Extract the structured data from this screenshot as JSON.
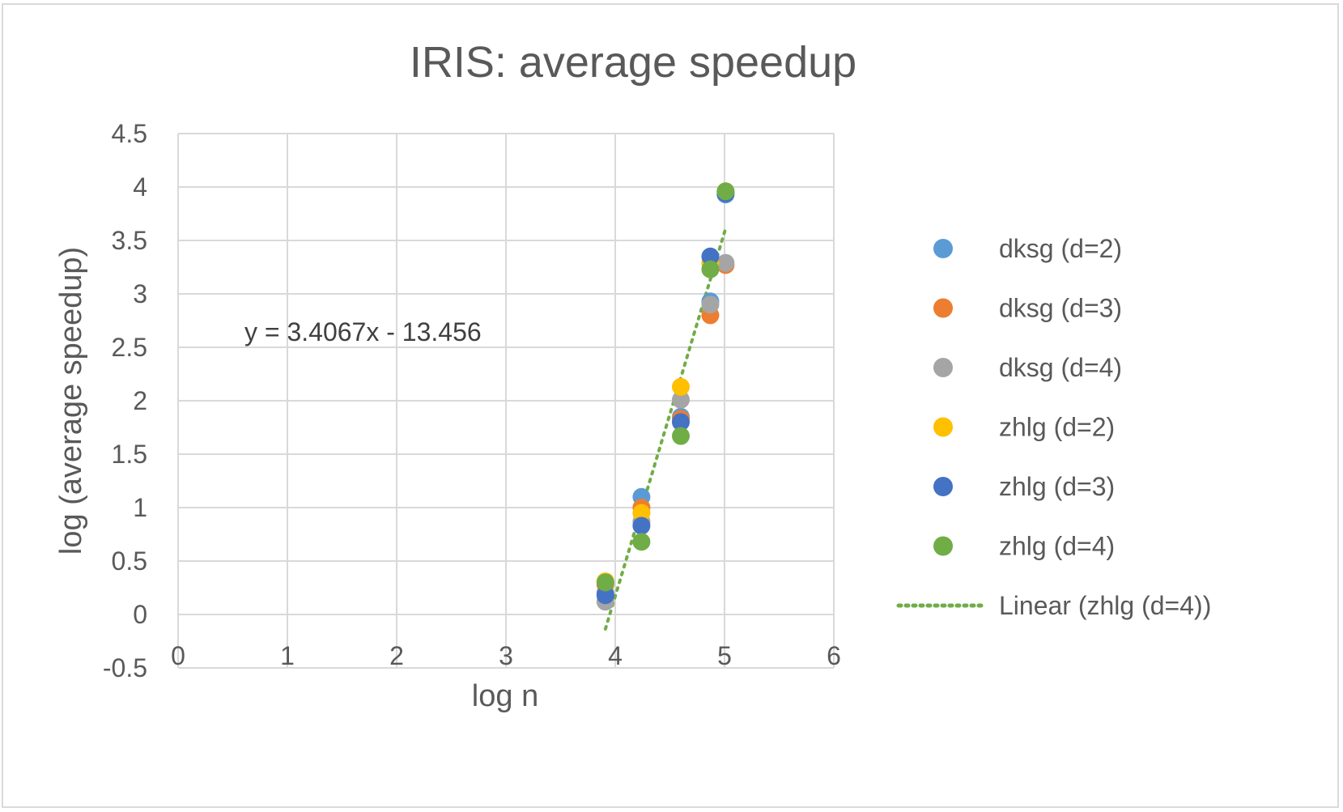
{
  "chart_data": {
    "type": "scatter",
    "title": "IRIS: average speedup",
    "xlabel": "log n",
    "ylabel": "log (average speedup)",
    "xlim": [
      0,
      6
    ],
    "ylim": [
      -0.5,
      4.5
    ],
    "x_ticks": [
      "0",
      "1",
      "2",
      "3",
      "4",
      "5",
      "6"
    ],
    "y_ticks": [
      "-0.5",
      "0",
      "0.5",
      "1",
      "1.5",
      "2",
      "2.5",
      "3",
      "3.5",
      "4",
      "4.5"
    ],
    "grid": true,
    "legend_position": "right",
    "series": [
      {
        "name": "dksg (d=2)",
        "color": "#5b9bd5",
        "points": [
          [
            3.91,
            0.2
          ],
          [
            4.24,
            1.1
          ],
          [
            4.6,
            1.85
          ],
          [
            4.87,
            2.93
          ],
          [
            5.01,
            3.93
          ]
        ]
      },
      {
        "name": "dksg (d=3)",
        "color": "#ed7d31",
        "points": [
          [
            3.91,
            0.28
          ],
          [
            4.24,
            1.0
          ],
          [
            4.6,
            1.83
          ],
          [
            4.87,
            2.8
          ],
          [
            5.01,
            3.27
          ]
        ]
      },
      {
        "name": "dksg (d=4)",
        "color": "#a5a5a5",
        "points": [
          [
            3.91,
            0.12
          ],
          [
            4.24,
            0.87
          ],
          [
            4.6,
            2.01
          ],
          [
            4.87,
            2.9
          ],
          [
            5.01,
            3.29
          ]
        ]
      },
      {
        "name": "zhlg (d=2)",
        "color": "#ffc000",
        "points": [
          [
            3.91,
            0.31
          ],
          [
            4.24,
            0.95
          ],
          [
            4.6,
            2.13
          ],
          [
            4.87,
            3.29
          ],
          [
            5.01,
            3.96
          ]
        ]
      },
      {
        "name": "zhlg (d=3)",
        "color": "#4472c4",
        "points": [
          [
            3.91,
            0.18
          ],
          [
            4.24,
            0.83
          ],
          [
            4.6,
            1.8
          ],
          [
            4.87,
            3.35
          ],
          [
            5.01,
            3.94
          ]
        ]
      },
      {
        "name": "zhlg (d=4)",
        "color": "#70ad47",
        "points": [
          [
            3.91,
            0.3
          ],
          [
            4.24,
            0.68
          ],
          [
            4.6,
            1.67
          ],
          [
            4.87,
            3.23
          ],
          [
            5.01,
            3.96
          ]
        ]
      }
    ],
    "trendline": {
      "name": "Linear (zhlg (d=4))",
      "color": "#70ad47",
      "style": "dotted",
      "slope": 3.4067,
      "intercept": -13.456,
      "x_range": [
        3.91,
        5.01
      ],
      "equation_label": "y = 3.4067x - 13.456"
    }
  }
}
